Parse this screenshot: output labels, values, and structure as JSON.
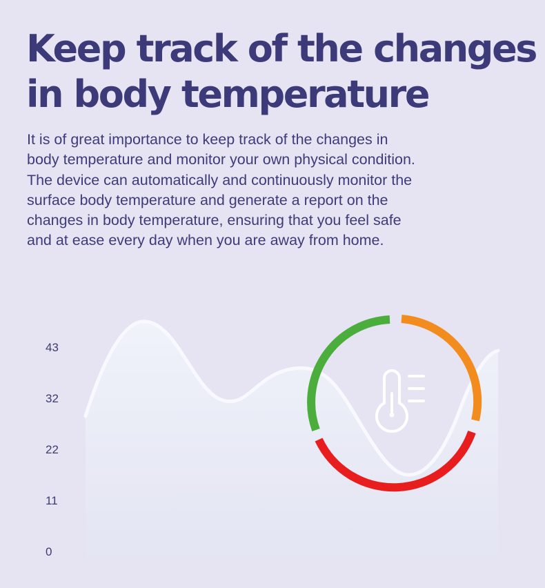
{
  "headline": {
    "line1": "Keep track of the changes",
    "line2": "in body temperature"
  },
  "description": {
    "lines": [
      "It is of great importance to keep track of the changes in",
      "body temperature and monitor your own physical condition.",
      "The device can automatically and continuously monitor the",
      "surface body temperature and generate a report on the",
      "changes in body temperature, ensuring that you feel safe",
      "and at ease every day when you are away from home."
    ]
  },
  "chart": {
    "y_ticks": [
      "43",
      "32",
      "22",
      "11",
      "0"
    ],
    "gauge_icon": "thermometer-icon",
    "colors": {
      "green": "#4bad3c",
      "orange": "#f28c1e",
      "red": "#e81e1e",
      "curve": "#f6f8fd",
      "title": "#3c3a78"
    }
  }
}
